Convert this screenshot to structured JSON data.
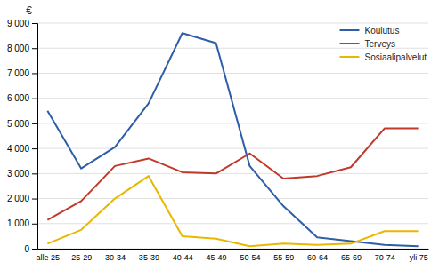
{
  "chart_data": {
    "type": "line",
    "y_label": "€",
    "categories": [
      "alle 25",
      "25-29",
      "30-34",
      "35-39",
      "40-44",
      "45-49",
      "50-54",
      "55-59",
      "60-64",
      "65-69",
      "70-74",
      "yli 75"
    ],
    "series": [
      {
        "name": "Koulutus",
        "color": "#2e5ea8",
        "values": [
          5500,
          3200,
          4050,
          5800,
          8600,
          8200,
          3300,
          1700,
          450,
          300,
          150,
          100
        ]
      },
      {
        "name": "Terveys",
        "color": "#c0392b",
        "values": [
          1150,
          1900,
          3300,
          3600,
          3050,
          3000,
          3800,
          2800,
          2900,
          3250,
          4800,
          4800
        ]
      },
      {
        "name": "Sosiaalipalvelut",
        "color": "#e8b800",
        "values": [
          200,
          750,
          2000,
          2900,
          500,
          400,
          100,
          200,
          150,
          200,
          700,
          700
        ]
      }
    ],
    "ylim": [
      0,
      9000
    ],
    "yticks": [
      0,
      {
        "value": 1000,
        "label": "1 000"
      },
      {
        "value": 2000,
        "label": "2 000"
      },
      {
        "value": 3000,
        "label": "3 000"
      },
      {
        "value": 4000,
        "label": "4 000"
      },
      {
        "value": 5000,
        "label": "5 000"
      },
      {
        "value": 6000,
        "label": "6 000"
      },
      {
        "value": 7000,
        "label": "7 000"
      },
      {
        "value": 8000,
        "label": "8 000"
      },
      {
        "value": 9000,
        "label": "9 000"
      }
    ],
    "grid": true,
    "legend": "upper right"
  }
}
